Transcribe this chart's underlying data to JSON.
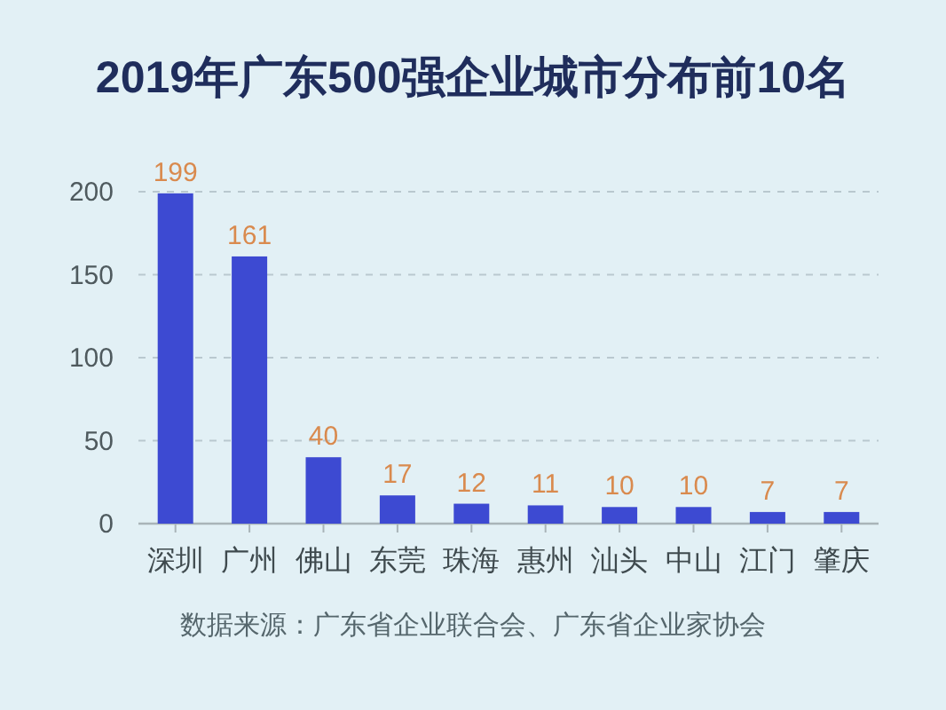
{
  "chart_data": {
    "type": "bar",
    "title": "2019年广东500强企业城市分布前10名",
    "categories": [
      "深圳",
      "广州",
      "佛山",
      "东莞",
      "珠海",
      "惠州",
      "汕头",
      "中山",
      "江门",
      "肇庆"
    ],
    "values": [
      199,
      161,
      40,
      17,
      12,
      11,
      10,
      10,
      7,
      7
    ],
    "color": "#3d4ad2",
    "ylim": [
      0,
      200
    ],
    "yticks": [
      0,
      50,
      100,
      150,
      200
    ],
    "grid": "y",
    "data_labels": true,
    "annotations": [
      "数据来源：广东省企业联合会、广东省企业家协会"
    ]
  }
}
